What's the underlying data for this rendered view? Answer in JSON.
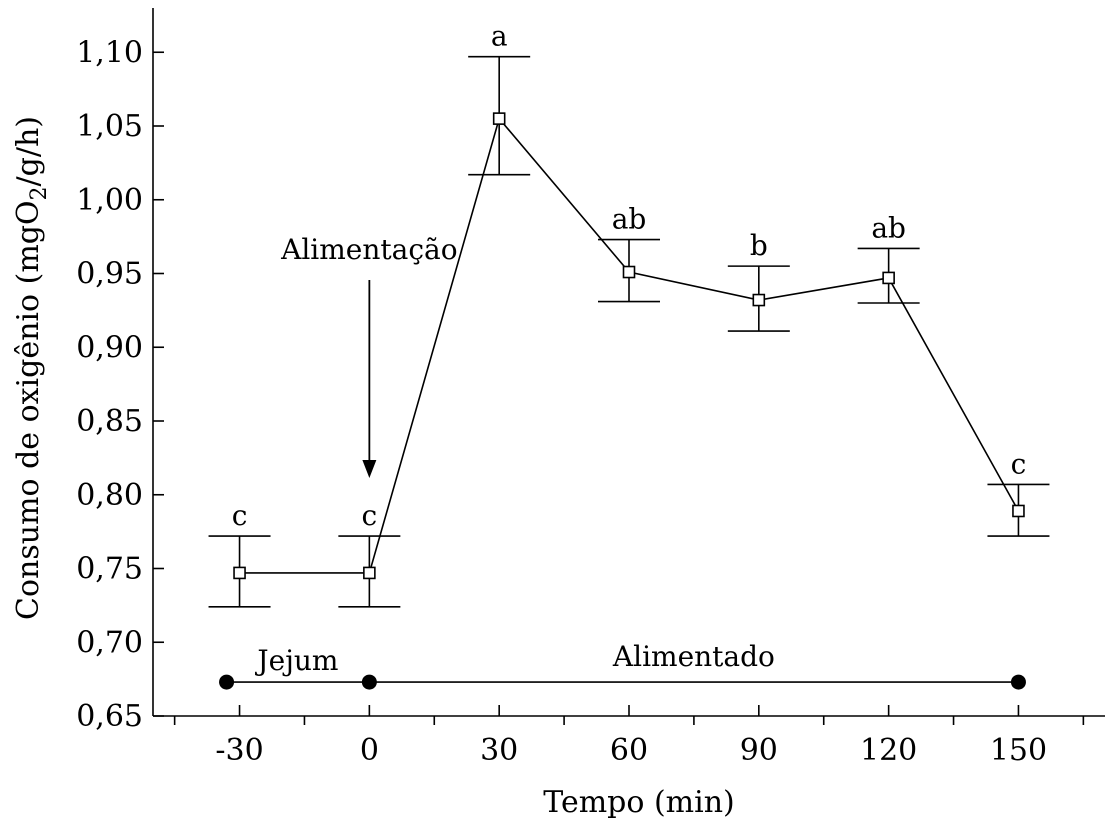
{
  "chart_data": {
    "type": "line",
    "xlabel": "Tempo (min)",
    "ylabel": "Consumo de oxigênio (mgO 2/g/h)",
    "ylabel_parts": {
      "pre": "Consumo de oxigênio (mgO",
      "sub": "2",
      "post": "/g/h)"
    },
    "xlim": [
      -50,
      170
    ],
    "ylim": [
      0.65,
      1.13
    ],
    "x_ticks": [
      -30,
      0,
      30,
      60,
      90,
      120,
      150
    ],
    "x_tick_labels": [
      "-30",
      "0",
      "30",
      "60",
      "90",
      "120",
      "150"
    ],
    "x_minor_ticks": [
      -45,
      -15,
      15,
      45,
      75,
      105,
      135,
      165
    ],
    "y_ticks": [
      0.65,
      0.7,
      0.75,
      0.8,
      0.85,
      0.9,
      0.95,
      1.0,
      1.05,
      1.1
    ],
    "y_tick_labels": [
      "0,65",
      "0,70",
      "0,75",
      "0,80",
      "0,85",
      "0,90",
      "0,95",
      "1,00",
      "1,05",
      "1,10"
    ],
    "grid": false,
    "series": [
      {
        "x": [
          -30,
          0,
          30,
          60,
          90,
          120,
          150
        ],
        "y": [
          0.747,
          0.747,
          1.055,
          0.951,
          0.932,
          0.947,
          0.789
        ],
        "err_high": [
          0.772,
          0.772,
          1.097,
          0.973,
          0.955,
          0.967,
          0.807
        ],
        "err_low": [
          0.724,
          0.724,
          1.017,
          0.931,
          0.911,
          0.93,
          0.772
        ],
        "letters": [
          "c",
          "c",
          "a",
          "ab",
          "b",
          "ab",
          "c"
        ]
      }
    ],
    "annotations": {
      "feeding_label": "Alimentação",
      "feeding_x": 0,
      "fasting_label": "Jejum",
      "fed_label": "Alimentado",
      "period_y": 0.673,
      "period_points": [
        -33,
        0,
        150
      ]
    }
  }
}
